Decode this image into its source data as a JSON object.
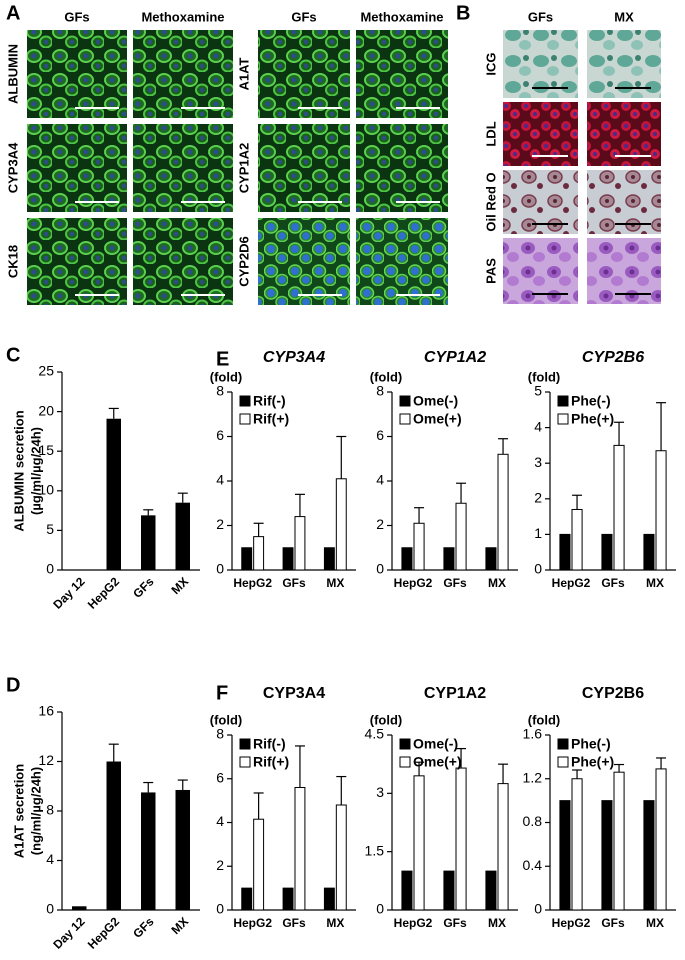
{
  "panel_a": {
    "label": "A",
    "groups": [
      {
        "columns": [
          "GFs",
          "Methoxamine"
        ],
        "rows": [
          "ALBUMIN",
          "CYP3A4",
          "CK18"
        ]
      },
      {
        "columns": [
          "GFs",
          "Methoxamine"
        ],
        "rows": [
          "A1AT",
          "CYP1A2",
          "CYP2D6"
        ]
      }
    ]
  },
  "panel_b": {
    "label": "B",
    "columns": [
      "GFs",
      "MX"
    ],
    "rows": [
      "ICG",
      "LDL",
      "Oil Red O",
      "PAS"
    ]
  },
  "chart_data": [
    {
      "type": "bar",
      "panel_label": "C",
      "ylabel": [
        "ALBUMIN secretion",
        "(µg/ml/µg/24h)"
      ],
      "categories": [
        "Day 12",
        "HepG2",
        "GFs",
        "MX"
      ],
      "values": [
        0,
        19.1,
        6.9,
        8.5
      ],
      "errors": [
        null,
        1.3,
        0.7,
        1.2
      ],
      "color": "#000000",
      "ylim": [
        0,
        25
      ],
      "yticks": [
        0,
        5,
        10,
        15,
        20,
        25
      ]
    },
    {
      "type": "bar",
      "panel_label": "D",
      "ylabel": [
        "A1AT secretion",
        "(ng/ml/µg/24h)"
      ],
      "categories": [
        "Day 12",
        "HepG2",
        "GFs",
        "MX"
      ],
      "values": [
        0.3,
        12,
        9.5,
        9.7
      ],
      "errors": [
        null,
        1.4,
        0.8,
        0.8
      ],
      "color": "#000000",
      "ylim": [
        0,
        16
      ],
      "yticks": [
        0,
        4,
        8,
        12,
        16
      ]
    },
    {
      "type": "grouped_bar",
      "panel_label": "E",
      "title": "CYP3A4",
      "title_italic": true,
      "unit_label": "(fold)",
      "categories": [
        "HepG2",
        "GFs",
        "MX"
      ],
      "series": [
        {
          "name": "Rif(-)",
          "color": "#000000",
          "values": [
            1,
            1,
            1
          ]
        },
        {
          "name": "Rif(+)",
          "color": "#ffffff",
          "values": [
            1.5,
            2.4,
            4.1
          ],
          "errors": [
            0.6,
            1.0,
            1.9
          ]
        }
      ],
      "ylim": [
        0,
        8
      ],
      "yticks": [
        0,
        2,
        4,
        6,
        8
      ]
    },
    {
      "type": "grouped_bar",
      "title": "CYP1A2",
      "title_italic": true,
      "unit_label": "(fold)",
      "categories": [
        "HepG2",
        "GFs",
        "MX"
      ],
      "series": [
        {
          "name": "Ome(-)",
          "color": "#000000",
          "values": [
            1,
            1,
            1
          ]
        },
        {
          "name": "Ome(+)",
          "color": "#ffffff",
          "values": [
            2.1,
            3.0,
            5.2
          ],
          "errors": [
            0.7,
            0.9,
            0.7
          ]
        }
      ],
      "ylim": [
        0,
        8
      ],
      "yticks": [
        0,
        2,
        4,
        6,
        8
      ]
    },
    {
      "type": "grouped_bar",
      "title": "CYP2B6",
      "title_italic": true,
      "unit_label": "(fold)",
      "categories": [
        "HepG2",
        "GFs",
        "MX"
      ],
      "series": [
        {
          "name": "Phe(-)",
          "color": "#000000",
          "values": [
            1,
            1,
            1
          ]
        },
        {
          "name": "Phe(+)",
          "color": "#ffffff",
          "values": [
            1.7,
            3.5,
            3.35
          ],
          "errors": [
            0.4,
            0.65,
            1.35
          ]
        }
      ],
      "ylim": [
        0,
        5
      ],
      "yticks": [
        0,
        1,
        2,
        3,
        4,
        5
      ]
    },
    {
      "type": "grouped_bar",
      "panel_label": "F",
      "title": "CYP3A4",
      "title_italic": false,
      "unit_label": "(fold)",
      "categories": [
        "HepG2",
        "GFs",
        "MX"
      ],
      "series": [
        {
          "name": "Rif(-)",
          "color": "#000000",
          "values": [
            1,
            1,
            1
          ]
        },
        {
          "name": "Rif(+)",
          "color": "#ffffff",
          "values": [
            4.15,
            5.6,
            4.8
          ],
          "errors": [
            1.2,
            1.9,
            1.3
          ]
        }
      ],
      "ylim": [
        0,
        8
      ],
      "yticks": [
        0,
        2,
        4,
        6,
        8
      ]
    },
    {
      "type": "grouped_bar",
      "title": "CYP1A2",
      "title_italic": false,
      "unit_label": "(fold)",
      "categories": [
        "HepG2",
        "GFs",
        "MX"
      ],
      "series": [
        {
          "name": "Ome(-)",
          "color": "#000000",
          "values": [
            1,
            1,
            1
          ]
        },
        {
          "name": "Ome(+)",
          "color": "#ffffff",
          "values": [
            3.45,
            3.65,
            3.25
          ],
          "errors": [
            0.35,
            0.5,
            0.5
          ]
        }
      ],
      "ylim": [
        0,
        4.5
      ],
      "yticks": [
        0,
        1.5,
        3,
        4.5
      ]
    },
    {
      "type": "grouped_bar",
      "title": "CYP2B6",
      "title_italic": false,
      "unit_label": "(fold)",
      "categories": [
        "HepG2",
        "GFs",
        "MX"
      ],
      "series": [
        {
          "name": "Phe(-)",
          "color": "#000000",
          "values": [
            1,
            1,
            1
          ]
        },
        {
          "name": "Phe(+)",
          "color": "#ffffff",
          "values": [
            1.2,
            1.26,
            1.29
          ],
          "errors": [
            0.08,
            0.07,
            0.1
          ]
        }
      ],
      "ylim": [
        0,
        1.6
      ],
      "yticks": [
        0,
        0.4,
        0.8,
        1.2,
        1.6
      ]
    }
  ]
}
